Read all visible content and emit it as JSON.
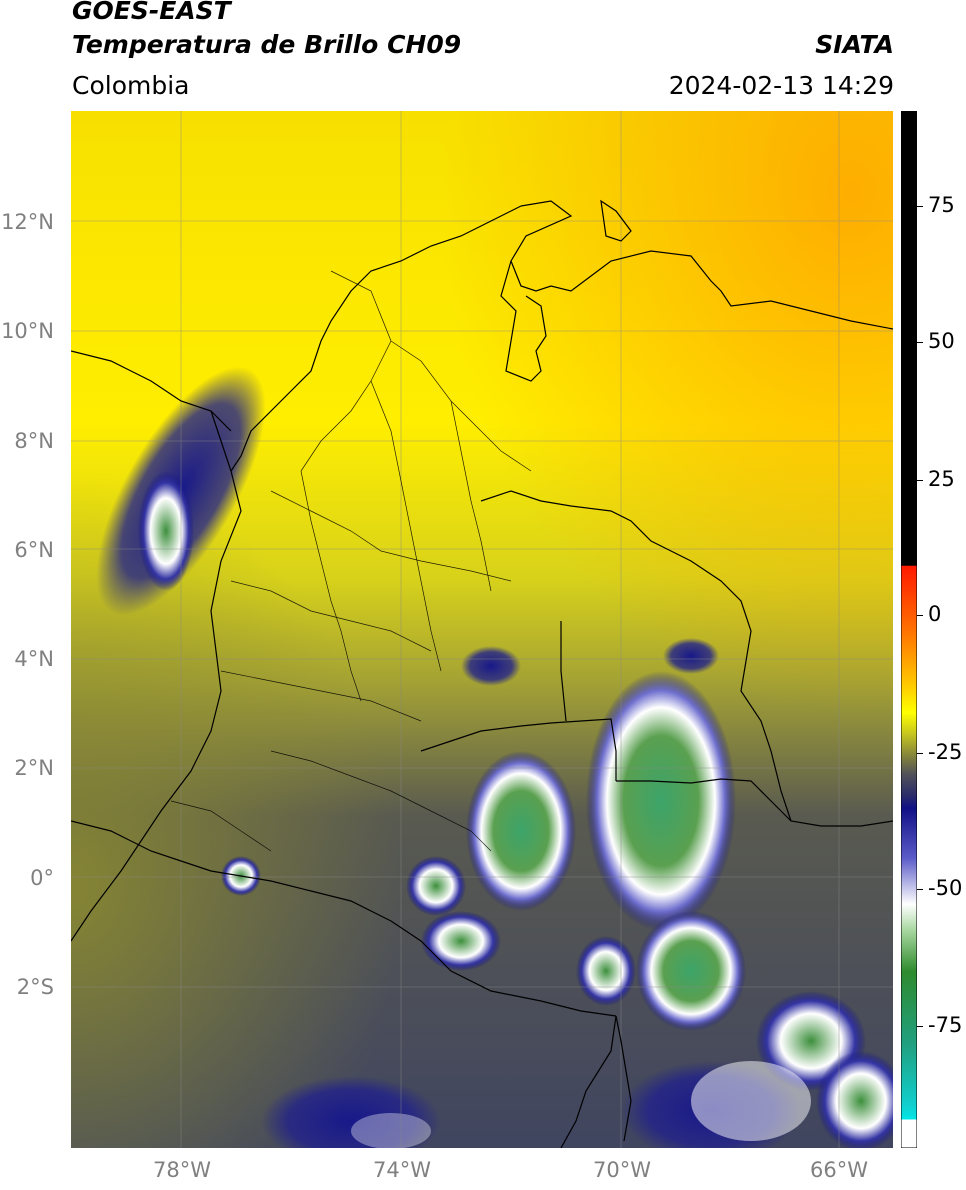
{
  "header": {
    "satellite": "GOES-EAST",
    "product": "Temperatura de Brillo CH09",
    "brand": "SIATA",
    "region": "Colombia",
    "timestamp": "2024-02-13 14:29"
  },
  "map": {
    "projection": "PlateCarree",
    "lon_range": [
      -80,
      -65
    ],
    "lat_range": [
      -5,
      14
    ],
    "lat_ticks": [
      "12°N",
      "10°N",
      "8°N",
      "6°N",
      "4°N",
      "2°N",
      "0°",
      "2°S"
    ],
    "lon_ticks": [
      "78°W",
      "74°W",
      "70°W",
      "66°W"
    ],
    "gridlines": true
  },
  "colorbar": {
    "ticks": [
      "75",
      "50",
      "25",
      "0",
      "-25",
      "-50",
      "-75"
    ],
    "units_range": [
      -95,
      90
    ],
    "colors": {
      "black": "#000000",
      "red": "#ff2200",
      "orange": "#ff9900",
      "yellow": "#ffff00",
      "olive": "#9a9a2a",
      "slate": "#3a3f5a",
      "navy": "#101080",
      "white": "#ffffff",
      "green": "#2e8b2e",
      "teal": "#20b090",
      "cyan": "#00e0e0"
    }
  }
}
